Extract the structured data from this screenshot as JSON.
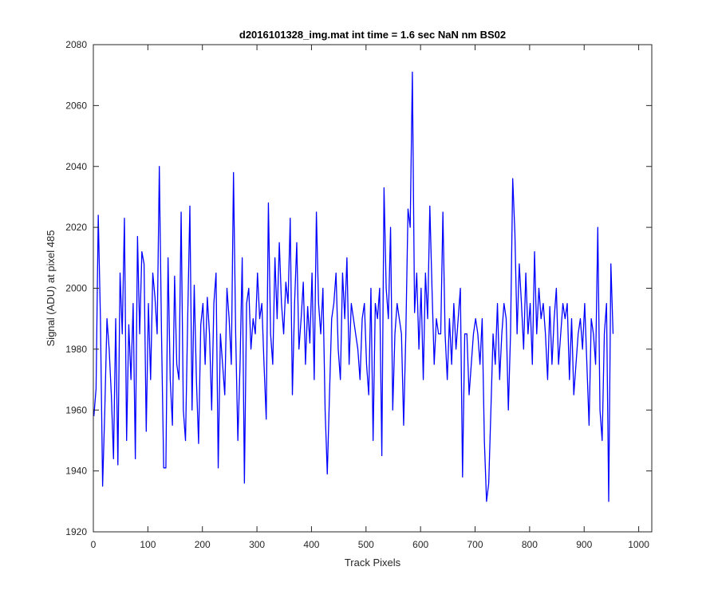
{
  "chart_data": {
    "type": "line",
    "title": "d2016101328_img.mat int time = 1.6 sec  NaN nm BS02",
    "xlabel": "Track Pixels",
    "ylabel": "Signal (ADU) at pixel 485",
    "xlim": [
      0,
      1024
    ],
    "ylim": [
      1920,
      2080
    ],
    "xticks": [
      0,
      100,
      200,
      300,
      400,
      500,
      600,
      700,
      800,
      900,
      1000
    ],
    "yticks": [
      1920,
      1940,
      1960,
      1980,
      2000,
      2020,
      2040,
      2060,
      2080
    ],
    "grid": false,
    "series": [
      {
        "color": "#0000ff",
        "x_start": 1,
        "x_step": 4,
        "values": [
          1958,
          1967,
          2024,
          1990,
          1935,
          1960,
          1990,
          1980,
          1965,
          1944,
          1990,
          1942,
          2005,
          1985,
          2023,
          1950,
          1988,
          1970,
          1995,
          1944,
          2017,
          1985,
          2012,
          2008,
          1953,
          1995,
          1970,
          2005,
          1997,
          1985,
          2040,
          1985,
          1941,
          1941,
          2010,
          1970,
          1955,
          2004,
          1975,
          1970,
          2025,
          1960,
          1950,
          1990,
          2027,
          1960,
          2001,
          1970,
          1949,
          1988,
          1995,
          1975,
          1997,
          1985,
          1960,
          1995,
          2005,
          1941,
          1985,
          1975,
          1965,
          2000,
          1990,
          1975,
          2038,
          1985,
          1950,
          1975,
          2010,
          1936,
          1995,
          2000,
          1980,
          1990,
          1985,
          2005,
          1990,
          1995,
          1975,
          1957,
          2028,
          1985,
          1975,
          2010,
          1990,
          2015,
          1995,
          1985,
          2002,
          1995,
          2023,
          1965,
          1995,
          2015,
          1980,
          1990,
          2002,
          1975,
          1994,
          1982,
          2005,
          1970,
          2025,
          1995,
          1985,
          2000,
          1960,
          1939,
          1965,
          1990,
          1995,
          2005,
          1980,
          1970,
          2005,
          1990,
          2010,
          1975,
          1995,
          1990,
          1985,
          1980,
          1970,
          1990,
          1995,
          1975,
          1965,
          2000,
          1950,
          1995,
          1990,
          2000,
          1945,
          2033,
          2000,
          1990,
          2020,
          1960,
          1985,
          1995,
          1990,
          1985,
          1955,
          1985,
          2026,
          2020,
          2071,
          1992,
          2005,
          1980,
          2000,
          1970,
          2005,
          1990,
          2027,
          2000,
          1975,
          1990,
          1985,
          1985,
          2025,
          1985,
          1970,
          1990,
          1975,
          1995,
          1980,
          1990,
          2000,
          1938,
          1985,
          1985,
          1965,
          1975,
          1985,
          1990,
          1985,
          1975,
          1990,
          1950,
          1930,
          1936,
          1960,
          1985,
          1975,
          1995,
          1970,
          1985,
          1995,
          1990,
          1960,
          1985,
          2036,
          2018,
          1985,
          2008,
          1995,
          1980,
          2005,
          1985,
          1995,
          1975,
          2012,
          1985,
          2000,
          1990,
          1995,
          1985,
          1970,
          1994,
          1975,
          1990,
          2000,
          1975,
          1985,
          1995,
          1990,
          1995,
          1970,
          1990,
          1965,
          1975,
          1985,
          1990,
          1980,
          1995,
          1975,
          1955,
          1990,
          1985,
          1975,
          2020,
          1960,
          1950,
          1985,
          1995,
          1930,
          2008,
          1985
        ]
      }
    ]
  }
}
